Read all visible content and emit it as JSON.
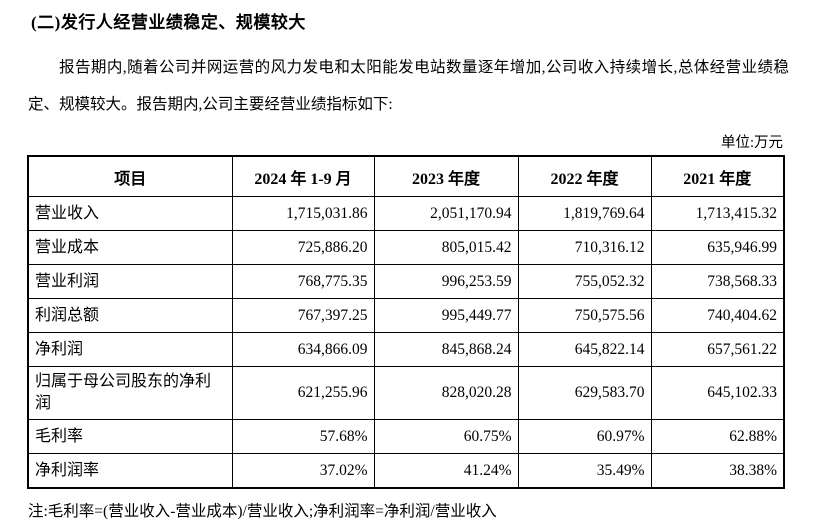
{
  "heading": "(二)发行人经营业绩稳定、规模较大",
  "paragraph": "报告期内,随着公司并网运营的风力发电和太阳能发电站数量逐年增加,公司收入持续增长,总体经营业绩稳定、规模较大。报告期内,公司主要经营业绩指标如下:",
  "unit_label": "单位:万元",
  "table": {
    "headers": [
      "项目",
      "2024 年 1-9 月",
      "2023 年度",
      "2022 年度",
      "2021 年度"
    ],
    "rows": [
      {
        "label": "营业收入",
        "values": [
          "1,715,031.86",
          "2,051,170.94",
          "1,819,769.64",
          "1,713,415.32"
        ]
      },
      {
        "label": "营业成本",
        "values": [
          "725,886.20",
          "805,015.42",
          "710,316.12",
          "635,946.99"
        ]
      },
      {
        "label": "营业利润",
        "values": [
          "768,775.35",
          "996,253.59",
          "755,052.32",
          "738,568.33"
        ]
      },
      {
        "label": "利润总额",
        "values": [
          "767,397.25",
          "995,449.77",
          "750,575.56",
          "740,404.62"
        ]
      },
      {
        "label": "净利润",
        "values": [
          "634,866.09",
          "845,868.24",
          "645,822.14",
          "657,561.22"
        ]
      },
      {
        "label": "归属于母公司股东的净利润",
        "values": [
          "621,255.96",
          "828,020.28",
          "629,583.70",
          "645,102.33"
        ]
      },
      {
        "label": "毛利率",
        "values": [
          "57.68%",
          "60.75%",
          "60.97%",
          "62.88%"
        ]
      },
      {
        "label": "净利润率",
        "values": [
          "37.02%",
          "41.24%",
          "35.49%",
          "38.38%"
        ]
      }
    ]
  },
  "note": "注:毛利率=(营业收入-营业成本)/营业收入;净利润率=净利润/营业收入"
}
